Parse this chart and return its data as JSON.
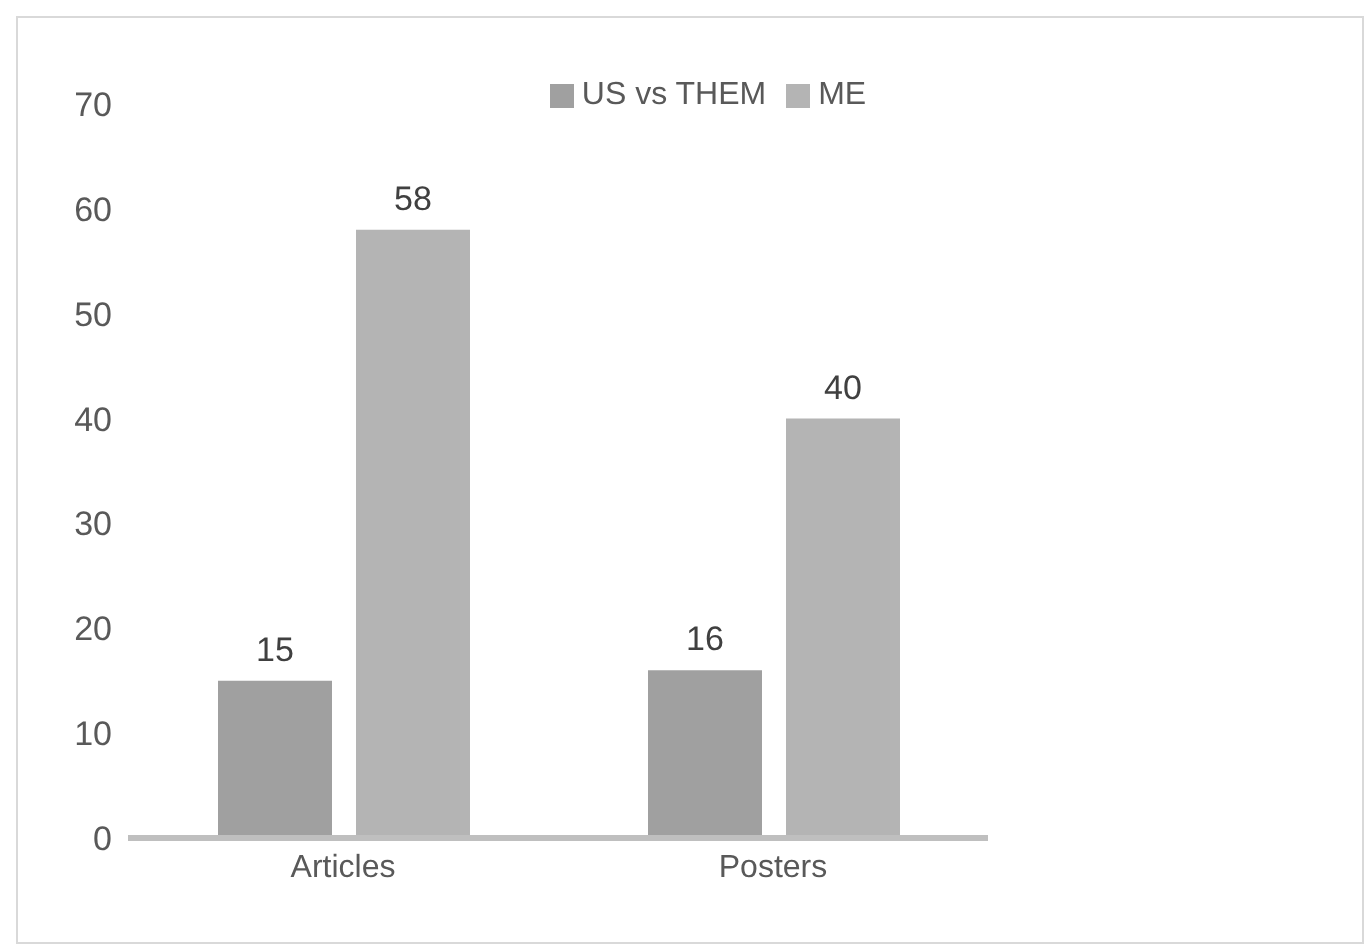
{
  "chart_data": {
    "type": "bar",
    "categories": [
      "Articles",
      "Posters"
    ],
    "series": [
      {
        "name": "US vs THEM",
        "color": "#a0a0a0",
        "values": [
          15,
          16
        ]
      },
      {
        "name": "ME",
        "color": "#b4b4b4",
        "values": [
          58,
          40
        ]
      }
    ],
    "ylim": [
      0,
      70
    ],
    "yticks": [
      0,
      10,
      20,
      30,
      40,
      50,
      60,
      70
    ],
    "grid": false,
    "legend": "top",
    "data_labels": true
  }
}
